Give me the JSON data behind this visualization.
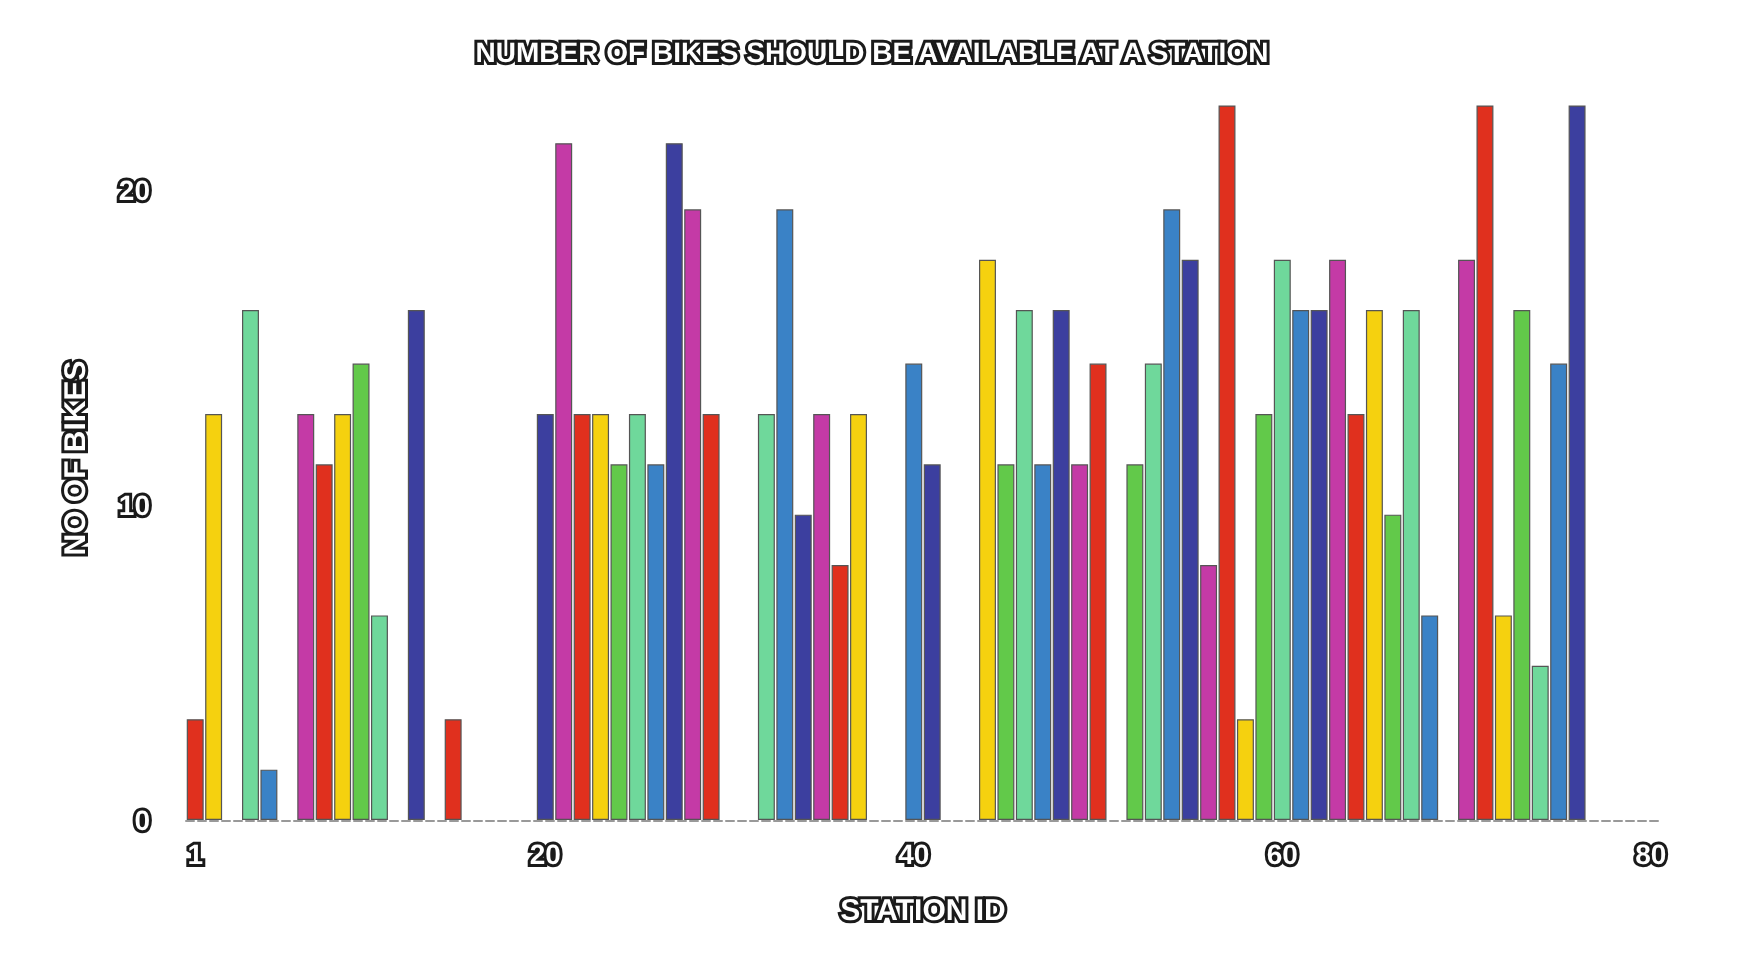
{
  "chart_data": {
    "type": "bar",
    "title": "NUMBER OF BIKES SHOULD BE AVAILABLE AT A STATION",
    "xlabel": "STATION ID",
    "ylabel": "NO OF BIKES",
    "categories": [
      "1",
      null,
      null,
      null,
      null,
      null,
      null,
      null,
      null,
      null,
      null,
      null,
      null,
      null,
      null,
      null,
      null,
      null,
      null,
      "20",
      null,
      null,
      null,
      null,
      null,
      null,
      null,
      null,
      null,
      null,
      null,
      null,
      null,
      null,
      null,
      null,
      null,
      null,
      null,
      "40",
      null,
      null,
      null,
      null,
      null,
      null,
      null,
      null,
      null,
      null,
      null,
      null,
      null,
      null,
      null,
      null,
      null,
      null,
      null,
      "60",
      null,
      null,
      null,
      null,
      null,
      null,
      null,
      null,
      null,
      null,
      null,
      null,
      null,
      null,
      null,
      null,
      null,
      null,
      null,
      "80"
    ],
    "values": [
      3.2,
      12.9,
      null,
      16.2,
      1.6,
      null,
      12.9,
      11.3,
      12.9,
      14.5,
      6.5,
      null,
      16.2,
      null,
      3.2,
      null,
      null,
      null,
      null,
      12.9,
      21.5,
      12.9,
      12.9,
      11.3,
      12.9,
      11.3,
      21.5,
      19.4,
      12.9,
      null,
      null,
      12.9,
      19.4,
      9.7,
      12.9,
      8.1,
      12.9,
      null,
      null,
      14.5,
      11.3,
      null,
      null,
      17.8,
      11.3,
      16.2,
      11.3,
      16.2,
      11.3,
      14.5,
      null,
      11.3,
      14.5,
      19.4,
      17.8,
      8.1,
      22.7,
      3.2,
      12.9,
      17.8,
      16.2,
      16.2,
      17.8,
      12.9,
      16.2,
      9.7,
      16.2,
      6.5,
      null,
      17.8,
      22.7,
      6.5,
      16.2,
      4.9,
      14.5,
      22.7,
      null,
      null,
      null,
      null
    ],
    "colors": [
      "#e0301e",
      "#f5d10f",
      null,
      "#6fd89b",
      "#3a82c6",
      null,
      "#c43aa6",
      "#e0301e",
      "#f5d10f",
      "#62c94a",
      "#6fd89b",
      null,
      "#3c3f9f",
      null,
      "#e0301e",
      null,
      null,
      null,
      null,
      "#3c3f9f",
      "#c43aa6",
      "#e0301e",
      "#f5d10f",
      "#62c94a",
      "#6fd89b",
      "#3a82c6",
      "#3c3f9f",
      "#c43aa6",
      "#e0301e",
      null,
      null,
      "#6fd89b",
      "#3a82c6",
      "#3c3f9f",
      "#c43aa6",
      "#e0301e",
      "#f5d10f",
      null,
      null,
      "#3a82c6",
      "#3c3f9f",
      null,
      null,
      "#f5d10f",
      "#62c94a",
      "#6fd89b",
      "#3a82c6",
      "#3c3f9f",
      "#c43aa6",
      "#e0301e",
      null,
      "#62c94a",
      "#6fd89b",
      "#3a82c6",
      "#3c3f9f",
      "#c43aa6",
      "#e0301e",
      "#f5d10f",
      "#62c94a",
      "#6fd89b",
      "#3a82c6",
      "#3c3f9f",
      "#c43aa6",
      "#e0301e",
      "#f5d10f",
      "#62c94a",
      "#6fd89b",
      "#3a82c6",
      null,
      "#c43aa6",
      "#e0301e",
      "#f5d10f",
      "#62c94a",
      "#6fd89b",
      "#3a82c6",
      "#3c3f9f",
      null,
      null,
      null,
      null
    ],
    "ylim": [
      0,
      23
    ],
    "yticks": [
      0,
      10,
      20
    ],
    "grid": false
  }
}
